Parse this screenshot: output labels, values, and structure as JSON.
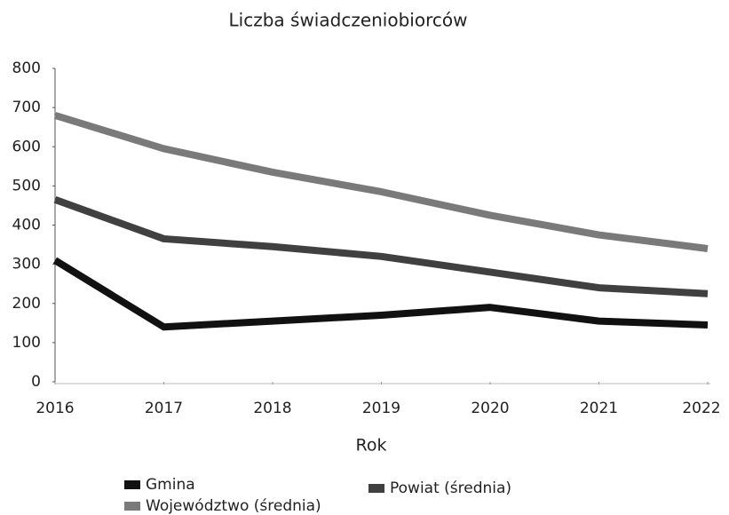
{
  "chart_data": {
    "type": "line",
    "title": "Liczba świadczeniobiorców",
    "x_label": "Rok",
    "x": [
      2016,
      2017,
      2018,
      2019,
      2020,
      2021,
      2022
    ],
    "xlim": [
      2016,
      2022
    ],
    "xticks": [
      2016,
      2017,
      2018,
      2019,
      2020,
      2021,
      2022
    ],
    "ylim": [
      0,
      800
    ],
    "yticks": [
      0,
      100,
      200,
      300,
      400,
      500,
      600,
      700,
      800
    ],
    "grid": false,
    "legend": "bottom",
    "series": [
      {
        "name": "Gmina",
        "color": "#111111",
        "values": [
          310,
          140,
          155,
          170,
          190,
          155,
          145
        ]
      },
      {
        "name": "Powiat (średnia)",
        "color": "#404040",
        "values": [
          465,
          365,
          345,
          320,
          280,
          240,
          225
        ]
      },
      {
        "name": "Województwo (średnia)",
        "color": "#7a7a7a",
        "values": [
          680,
          595,
          535,
          485,
          425,
          375,
          340
        ]
      }
    ]
  }
}
